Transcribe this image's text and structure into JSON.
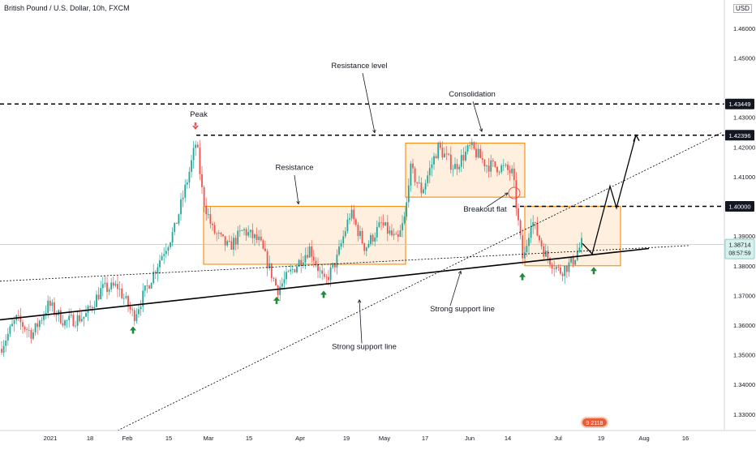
{
  "header": {
    "title": "British Pound / U.S. Dollar, 10h, FXCM",
    "currency": "USD"
  },
  "chart_data": {
    "type": "candlestick",
    "title": "British Pound / U.S. Dollar, 10h, FXCM",
    "xlabel": "",
    "ylabel": "",
    "ylim": [
      1.3245,
      1.4695
    ],
    "y_ticks": [
      1.33,
      1.34,
      1.35,
      1.36,
      1.37,
      1.38,
      1.39,
      1.41,
      1.42,
      1.43,
      1.45,
      1.46
    ],
    "x_ticks": [
      "2021",
      "18",
      "Feb",
      "15",
      "Mar",
      "15",
      "Apr",
      "19",
      "May",
      "17",
      "Jun",
      "14",
      "Jul",
      "19",
      "Aug",
      "16"
    ],
    "grid": false,
    "colors": {
      "up": "#26a69a",
      "down": "#ef5350",
      "annotation_box": "#f7941d",
      "box_fill": "#fde2c2",
      "background": "#ffffff"
    },
    "price_tags": [
      {
        "label": "1.43449",
        "value": 1.43449,
        "style": "dark"
      },
      {
        "label": "1.42396",
        "value": 1.42396,
        "style": "dark"
      },
      {
        "label": "1.40000",
        "value": 1.4,
        "style": "dark"
      },
      {
        "label": "1.38714",
        "value": 1.38714,
        "style": "light",
        "countdown": "08:57:59"
      }
    ],
    "key_path": [
      {
        "x": 0,
        "y": 1.352
      },
      {
        "x": 20,
        "y": 1.362
      },
      {
        "x": 40,
        "y": 1.357
      },
      {
        "x": 60,
        "y": 1.367
      },
      {
        "x": 80,
        "y": 1.361
      },
      {
        "x": 105,
        "y": 1.363
      },
      {
        "x": 125,
        "y": 1.372
      },
      {
        "x": 145,
        "y": 1.373
      },
      {
        "x": 165,
        "y": 1.363
      },
      {
        "x": 180,
        "y": 1.372
      },
      {
        "x": 200,
        "y": 1.384
      },
      {
        "x": 215,
        "y": 1.392
      },
      {
        "x": 232,
        "y": 1.41
      },
      {
        "x": 242,
        "y": 1.422
      },
      {
        "x": 250,
        "y": 1.403
      },
      {
        "x": 262,
        "y": 1.392
      },
      {
        "x": 282,
        "y": 1.386
      },
      {
        "x": 300,
        "y": 1.392
      },
      {
        "x": 320,
        "y": 1.388
      },
      {
        "x": 342,
        "y": 1.372
      },
      {
        "x": 362,
        "y": 1.379
      },
      {
        "x": 382,
        "y": 1.386
      },
      {
        "x": 400,
        "y": 1.374
      },
      {
        "x": 415,
        "y": 1.382
      },
      {
        "x": 432,
        "y": 1.398
      },
      {
        "x": 450,
        "y": 1.386
      },
      {
        "x": 470,
        "y": 1.394
      },
      {
        "x": 490,
        "y": 1.388
      },
      {
        "x": 500,
        "y": 1.397
      },
      {
        "x": 505,
        "y": 1.413
      },
      {
        "x": 520,
        "y": 1.405
      },
      {
        "x": 540,
        "y": 1.42
      },
      {
        "x": 560,
        "y": 1.413
      },
      {
        "x": 580,
        "y": 1.42
      },
      {
        "x": 600,
        "y": 1.414
      },
      {
        "x": 620,
        "y": 1.413
      },
      {
        "x": 632,
        "y": 1.411
      },
      {
        "x": 640,
        "y": 1.392
      },
      {
        "x": 645,
        "y": 1.381
      },
      {
        "x": 655,
        "y": 1.396
      },
      {
        "x": 672,
        "y": 1.384
      },
      {
        "x": 690,
        "y": 1.378
      },
      {
        "x": 705,
        "y": 1.381
      },
      {
        "x": 718,
        "y": 1.388
      }
    ],
    "lines": [
      {
        "type": "support",
        "style": "solid",
        "from": {
          "x": 0,
          "y": 1.3618
        },
        "to": {
          "x": 800,
          "y": 1.3858
        }
      },
      {
        "type": "trend",
        "style": "dotted",
        "from": {
          "x": 0,
          "y": 1.3748
        },
        "to": {
          "x": 850,
          "y": 1.3868
        }
      },
      {
        "type": "trend",
        "style": "dotted",
        "from": {
          "x": 145,
          "y": 1.3245
        },
        "to": {
          "x": 890,
          "y": 1.4249
        }
      },
      {
        "type": "level",
        "style": "dashed",
        "from": {
          "x": 0,
          "y": 1.43449
        },
        "to": {
          "x": 893,
          "y": 1.43449
        }
      },
      {
        "type": "level",
        "style": "dashed",
        "from": {
          "x": 242,
          "y": 1.42396
        },
        "to": {
          "x": 893,
          "y": 1.42396
        }
      },
      {
        "type": "level",
        "style": "dashed",
        "from": {
          "x": 632,
          "y": 1.4
        },
        "to": {
          "x": 893,
          "y": 1.4
        }
      }
    ],
    "boxes": [
      {
        "name": "range-box-mar-may",
        "x0": 251,
        "x1": 500,
        "y_top": 1.4,
        "y_bottom": 1.3805
      },
      {
        "name": "consolidation-box",
        "x0": 500,
        "x1": 647,
        "y_top": 1.4213,
        "y_bottom": 1.4031
      },
      {
        "name": "range-box-jun-jul",
        "x0": 647,
        "x1": 765,
        "y_top": 1.4,
        "y_bottom": 1.38
      }
    ],
    "projection": [
      {
        "x": 718,
        "y": 1.3875
      },
      {
        "x": 730,
        "y": 1.384
      },
      {
        "x": 752,
        "y": 1.4068
      },
      {
        "x": 760,
        "y": 1.3995
      },
      {
        "x": 784,
        "y": 1.424
      }
    ],
    "markers": [
      {
        "name": "peak-arrow",
        "dir": "down",
        "x": 241,
        "y": 1.4269
      },
      {
        "name": "support-arrow-1",
        "dir": "up",
        "x": 164,
        "y": 1.3585
      },
      {
        "name": "support-arrow-2",
        "dir": "up",
        "x": 341,
        "y": 1.3685
      },
      {
        "name": "support-arrow-3",
        "dir": "up",
        "x": 399,
        "y": 1.3705
      },
      {
        "name": "support-arrow-4",
        "dir": "up",
        "x": 644,
        "y": 1.3765
      },
      {
        "name": "support-arrow-5",
        "dir": "up",
        "x": 732,
        "y": 1.3785
      }
    ],
    "annotations": [
      {
        "name": "peak-label",
        "text": "Peak",
        "x": 245,
        "y": 1.4302
      },
      {
        "name": "resistance-level-label",
        "text": "Resistance level",
        "x": 443,
        "y": 1.4466
      },
      {
        "name": "consolidation-label",
        "text": "Consolidation",
        "x": 582,
        "y": 1.437
      },
      {
        "name": "resistance-label",
        "text": "Resistance",
        "x": 363,
        "y": 1.4123
      },
      {
        "name": "breakout-flat-label",
        "text": "Breakout flat",
        "x": 598,
        "y": 1.3982
      },
      {
        "name": "strong-support-line-label-right",
        "text": "Strong support line",
        "x": 570,
        "y": 1.3646
      },
      {
        "name": "strong-support-line-label-left",
        "text": "Strong support line",
        "x": 449,
        "y": 1.3519
      }
    ],
    "callouts": [
      {
        "from": {
          "x": 447,
          "y": 1.4449
        },
        "to": {
          "x": 462,
          "y": 1.4248
        }
      },
      {
        "from": {
          "x": 583,
          "y": 1.4353
        },
        "to": {
          "x": 594,
          "y": 1.4252
        }
      },
      {
        "from": {
          "x": 363,
          "y": 1.4105
        },
        "to": {
          "x": 368,
          "y": 1.4008
        }
      },
      {
        "from": {
          "x": 600,
          "y": 1.3998
        },
        "to": {
          "x": 626,
          "y": 1.4045
        }
      },
      {
        "from": {
          "x": 555,
          "y": 1.3665
        },
        "to": {
          "x": 568,
          "y": 1.3782
        }
      },
      {
        "from": {
          "x": 446,
          "y": 1.3539
        },
        "to": {
          "x": 443,
          "y": 1.3685
        }
      }
    ],
    "breakout_circle": {
      "x": 634,
      "y": 1.4045
    }
  }
}
